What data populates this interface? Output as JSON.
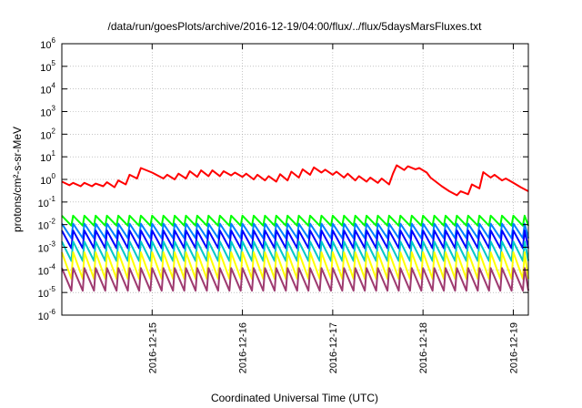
{
  "chart_data": {
    "type": "line",
    "title": "/data/run/goesPlots/archive/2016-12-19/04:00/flux/../flux/5daysMarsFluxes.txt",
    "xlabel": "Coordinated Universal Time (UTC)",
    "ylabel": "protons/cm²-s-sr-MeV",
    "y_scale": "log",
    "ylim": [
      1e-06,
      1000000.0
    ],
    "xlim": [
      "2016-12-14 00:00",
      "2016-12-19 04:00"
    ],
    "x_ticks": [
      "2016-12-15",
      "2016-12-16",
      "2016-12-17",
      "2016-12-18",
      "2016-12-19"
    ],
    "y_ticks": [
      {
        "base": "10",
        "exp": "-6"
      },
      {
        "base": "10",
        "exp": "-5"
      },
      {
        "base": "10",
        "exp": "-4"
      },
      {
        "base": "10",
        "exp": "-3"
      },
      {
        "base": "10",
        "exp": "-2"
      },
      {
        "base": "10",
        "exp": "-1"
      },
      {
        "base": "10",
        "exp": "0"
      },
      {
        "base": "10",
        "exp": "1"
      },
      {
        "base": "10",
        "exp": "2"
      },
      {
        "base": "10",
        "exp": "3"
      },
      {
        "base": "10",
        "exp": "4"
      },
      {
        "base": "10",
        "exp": "5"
      },
      {
        "base": "10",
        "exp": "6"
      }
    ],
    "grid": true,
    "series": [
      {
        "color": "#ff0000",
        "x": [
          "2016-12-14 00:00",
          "2016-12-14 02:00",
          "2016-12-14 03:00",
          "2016-12-14 05:00",
          "2016-12-14 06:00",
          "2016-12-14 08:00",
          "2016-12-14 09:00",
          "2016-12-14 11:00",
          "2016-12-14 12:00",
          "2016-12-14 14:00",
          "2016-12-14 15:00",
          "2016-12-14 17:00",
          "2016-12-14 18:00",
          "2016-12-14 20:00",
          "2016-12-14 21:00",
          "2016-12-15 00:00",
          "2016-12-15 03:00",
          "2016-12-15 04:00",
          "2016-12-15 06:00",
          "2016-12-15 07:00",
          "2016-12-15 09:00",
          "2016-12-15 10:00",
          "2016-12-15 12:00",
          "2016-12-15 13:00",
          "2016-12-15 15:00",
          "2016-12-15 16:00",
          "2016-12-15 18:00",
          "2016-12-15 19:00",
          "2016-12-15 21:00",
          "2016-12-15 22:00",
          "2016-12-16 00:00",
          "2016-12-16 01:00",
          "2016-12-16 03:00",
          "2016-12-16 04:00",
          "2016-12-16 06:00",
          "2016-12-16 07:00",
          "2016-12-16 09:00",
          "2016-12-16 10:00",
          "2016-12-16 12:00",
          "2016-12-16 13:00",
          "2016-12-16 15:00",
          "2016-12-16 16:00",
          "2016-12-16 18:00",
          "2016-12-16 19:00",
          "2016-12-16 21:00",
          "2016-12-16 22:00",
          "2016-12-17 00:00",
          "2016-12-17 01:00",
          "2016-12-17 03:00",
          "2016-12-17 04:00",
          "2016-12-17 06:00",
          "2016-12-17 07:00",
          "2016-12-17 09:00",
          "2016-12-17 10:00",
          "2016-12-17 12:00",
          "2016-12-17 13:00",
          "2016-12-17 15:00",
          "2016-12-17 16:00",
          "2016-12-17 17:00",
          "2016-12-17 19:00",
          "2016-12-17 20:00",
          "2016-12-17 22:00",
          "2016-12-17 23:00",
          "2016-12-18 01:00",
          "2016-12-18 02:00",
          "2016-12-18 05:00",
          "2016-12-18 07:00",
          "2016-12-18 09:00",
          "2016-12-18 10:00",
          "2016-12-18 12:00",
          "2016-12-18 13:00",
          "2016-12-18 15:00",
          "2016-12-18 16:00",
          "2016-12-18 18:00",
          "2016-12-18 19:00",
          "2016-12-18 21:00",
          "2016-12-18 22:00",
          "2016-12-19 00:00",
          "2016-12-19 02:00",
          "2016-12-19 04:00"
        ],
        "y": [
          0.8,
          0.55,
          0.7,
          0.5,
          0.7,
          0.5,
          0.65,
          0.5,
          0.75,
          0.45,
          0.9,
          0.6,
          1.6,
          1.1,
          3.2,
          2.0,
          1.1,
          1.6,
          1.0,
          1.8,
          1.1,
          2.3,
          1.3,
          2.5,
          1.4,
          2.5,
          1.4,
          2.3,
          1.5,
          2.0,
          1.3,
          1.8,
          1.0,
          1.6,
          0.9,
          1.4,
          0.8,
          1.7,
          0.9,
          2.2,
          1.2,
          2.8,
          1.6,
          3.4,
          2.0,
          2.7,
          1.6,
          2.2,
          1.2,
          1.8,
          0.9,
          1.4,
          0.8,
          1.2,
          0.7,
          1.1,
          0.6,
          1.8,
          4.2,
          2.6,
          3.8,
          2.8,
          3.2,
          2.0,
          1.2,
          0.5,
          0.3,
          0.2,
          0.3,
          0.22,
          0.6,
          0.4,
          2.1,
          1.2,
          1.6,
          0.9,
          1.1,
          0.7,
          0.45,
          0.3
        ]
      },
      {
        "color": "#00ff00",
        "pattern": "sawtooth",
        "peak": 0.025,
        "trough": 0.009,
        "period_hours": 3
      },
      {
        "color": "#0080ff",
        "pattern": "sawtooth",
        "peak": 0.011,
        "trough": 0.0025,
        "period_hours": 3
      },
      {
        "color": "#0000ff",
        "pattern": "sawtooth",
        "peak": 0.0055,
        "trough": 0.0009,
        "period_hours": 3
      },
      {
        "color": "#00c8c8",
        "pattern": "sawtooth",
        "peak": 0.0018,
        "trough": 0.00025,
        "period_hours": 3
      },
      {
        "color": "#ffff00",
        "pattern": "sawtooth",
        "peak": 0.0006,
        "trough": 4e-05,
        "period_hours": 3
      },
      {
        "color": "#9e3a70",
        "pattern": "sawtooth",
        "peak": 0.00012,
        "trough": 1.2e-05,
        "period_hours": 3
      }
    ]
  }
}
